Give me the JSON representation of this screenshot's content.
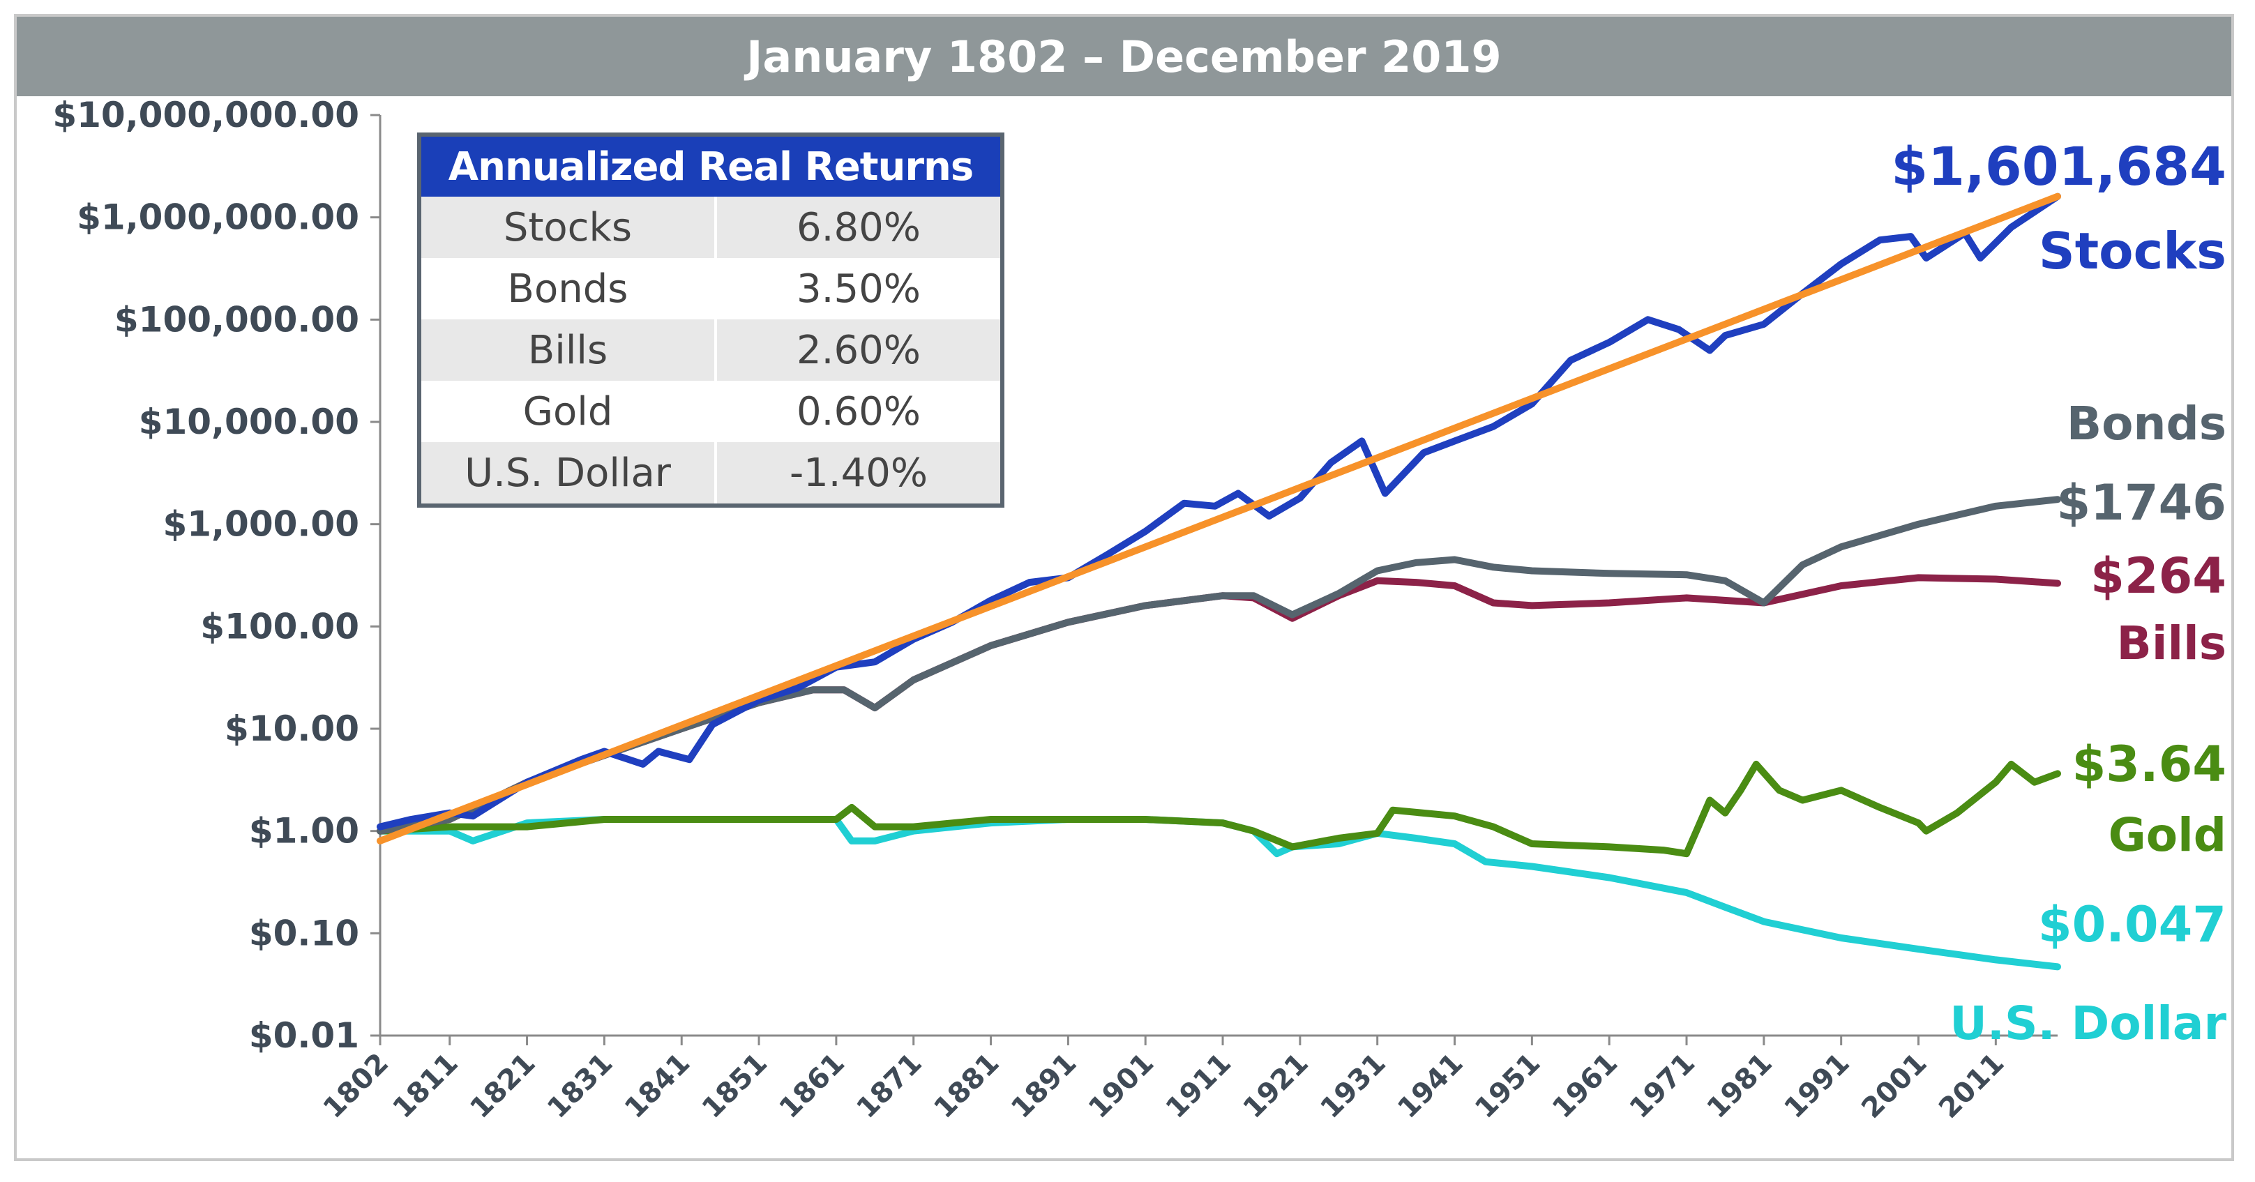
{
  "chart_data": {
    "type": "line",
    "title": "January 1802 – December 2019",
    "yscale": "log",
    "ylim": [
      0.01,
      10000000
    ],
    "xlim": [
      1802,
      2019
    ],
    "y_tick_labels": [
      "$10,000,000.00",
      "$1,000,000.00",
      "$100,000.00",
      "$10,000.00",
      "$1,000.00",
      "$100.00",
      "$10.00",
      "$1.00",
      "$0.10",
      "$0.01"
    ],
    "y_tick_values": [
      10000000,
      1000000,
      100000,
      10000,
      1000,
      100,
      10,
      1,
      0.1,
      0.01
    ],
    "x_tick_labels": [
      "1802",
      "1811",
      "1821",
      "1831",
      "1841",
      "1851",
      "1861",
      "1871",
      "1881",
      "1891",
      "1901",
      "1911",
      "1921",
      "1931",
      "1941",
      "1951",
      "1961",
      "1971",
      "1981",
      "1991",
      "2001",
      "2011"
    ],
    "series": [
      {
        "name": "Stocks",
        "color": "#1f3fbf",
        "end_value_label": "$1,601,684",
        "x": [
          1802,
          1806,
          1811,
          1814,
          1821,
          1828,
          1831,
          1836,
          1838,
          1842,
          1845,
          1851,
          1856,
          1861,
          1866,
          1871,
          1876,
          1881,
          1886,
          1891,
          1896,
          1901,
          1906,
          1910,
          1913,
          1917,
          1921,
          1925,
          1929,
          1932,
          1937,
          1941,
          1946,
          1951,
          1956,
          1961,
          1966,
          1970,
          1974,
          1976,
          1981,
          1986,
          1991,
          1996,
          2000,
          2002,
          2007,
          2009,
          2013,
          2019
        ],
        "y": [
          1.1,
          1.3,
          1.5,
          1.4,
          3,
          5,
          6,
          4.5,
          6,
          5,
          11,
          19,
          25,
          40,
          45,
          75,
          110,
          180,
          270,
          300,
          500,
          850,
          1600,
          1500,
          2000,
          1200,
          1800,
          4000,
          6500,
          2000,
          5000,
          6500,
          9000,
          15000,
          40000,
          60000,
          100000,
          80000,
          50000,
          70000,
          90000,
          180000,
          350000,
          600000,
          650000,
          400000,
          700000,
          400000,
          800000,
          1600000
        ]
      },
      {
        "name": "Bonds",
        "color": "#56646e",
        "end_value_label": "$1746",
        "x": [
          1802,
          1811,
          1821,
          1831,
          1841,
          1851,
          1858,
          1862,
          1866,
          1871,
          1881,
          1891,
          1901,
          1911,
          1915,
          1920,
          1926,
          1931,
          1936,
          1941,
          1946,
          1951,
          1961,
          1971,
          1976,
          1981,
          1986,
          1991,
          2001,
          2011,
          2019
        ],
        "y": [
          1,
          1.3,
          3,
          5.5,
          10,
          18,
          24,
          24,
          16,
          30,
          65,
          110,
          160,
          200,
          200,
          130,
          210,
          350,
          420,
          450,
          380,
          350,
          330,
          320,
          280,
          170,
          400,
          600,
          1000,
          1500,
          1746
        ]
      },
      {
        "name": "Bills",
        "color": "#8c2248",
        "end_value_label": "$264",
        "x": [
          1802,
          1811,
          1821,
          1831,
          1841,
          1851,
          1858,
          1862,
          1866,
          1871,
          1881,
          1891,
          1901,
          1911,
          1915,
          1920,
          1926,
          1931,
          1936,
          1941,
          1946,
          1951,
          1961,
          1971,
          1981,
          1991,
          2001,
          2011,
          2019
        ],
        "y": [
          1,
          1.3,
          3,
          5.5,
          10,
          18,
          24,
          24,
          16,
          30,
          65,
          110,
          160,
          200,
          190,
          120,
          200,
          280,
          270,
          250,
          170,
          160,
          170,
          190,
          170,
          250,
          300,
          290,
          264
        ]
      },
      {
        "name": "Gold",
        "color": "#4a8c13",
        "end_value_label": "$3.64",
        "x": [
          1802,
          1811,
          1821,
          1831,
          1841,
          1851,
          1861,
          1863,
          1866,
          1871,
          1881,
          1891,
          1901,
          1911,
          1915,
          1920,
          1926,
          1931,
          1933,
          1941,
          1946,
          1951,
          1961,
          1968,
          1971,
          1974,
          1976,
          1978,
          1980,
          1983,
          1986,
          1991,
          1996,
          2001,
          2002,
          2006,
          2011,
          2013,
          2016,
          2019
        ],
        "y": [
          1,
          1.1,
          1.1,
          1.3,
          1.3,
          1.3,
          1.3,
          1.7,
          1.1,
          1.1,
          1.3,
          1.3,
          1.3,
          1.2,
          1,
          0.7,
          0.85,
          0.95,
          1.6,
          1.4,
          1.1,
          0.75,
          0.7,
          0.65,
          0.6,
          2,
          1.5,
          2.5,
          4.5,
          2.5,
          2,
          2.5,
          1.7,
          1.2,
          1,
          1.5,
          3,
          4.5,
          3,
          3.64
        ]
      },
      {
        "name": "U.S. Dollar",
        "color": "#20cfd3",
        "end_value_label": "$0.047",
        "x": [
          1802,
          1811,
          1814,
          1821,
          1831,
          1841,
          1851,
          1861,
          1863,
          1866,
          1871,
          1881,
          1891,
          1901,
          1911,
          1915,
          1918,
          1920,
          1926,
          1931,
          1936,
          1941,
          1945,
          1951,
          1961,
          1971,
          1976,
          1981,
          1991,
          2001,
          2011,
          2019
        ],
        "y": [
          1,
          1,
          0.8,
          1.2,
          1.3,
          1.3,
          1.3,
          1.3,
          0.8,
          0.8,
          1,
          1.2,
          1.3,
          1.3,
          1.2,
          1,
          0.6,
          0.7,
          0.75,
          0.95,
          0.85,
          0.75,
          0.5,
          0.45,
          0.35,
          0.25,
          0.18,
          0.13,
          0.09,
          0.07,
          0.055,
          0.047
        ]
      }
    ],
    "trend_line": {
      "name": "Stocks trend",
      "color": "#f7922a",
      "x": [
        1802,
        2019
      ],
      "y": [
        0.8,
        1600000
      ]
    },
    "series_labels": [
      {
        "series": "Stocks",
        "name_text": "Stocks"
      },
      {
        "series": "Bonds",
        "name_text": "Bonds"
      },
      {
        "series": "Bills",
        "name_text": "Bills"
      },
      {
        "series": "Gold",
        "name_text": "Gold"
      },
      {
        "series": "U.S. Dollar",
        "name_text": "U.S. Dollar"
      }
    ]
  },
  "returns_table": {
    "header": "Annualized Real Returns",
    "rows": [
      {
        "asset": "Stocks",
        "return": "6.80%"
      },
      {
        "asset": "Bonds",
        "return": "3.50%"
      },
      {
        "asset": "Bills",
        "return": "2.60%"
      },
      {
        "asset": "Gold",
        "return": "0.60%"
      },
      {
        "asset": "U.S. Dollar",
        "return": "-1.40%"
      }
    ]
  }
}
